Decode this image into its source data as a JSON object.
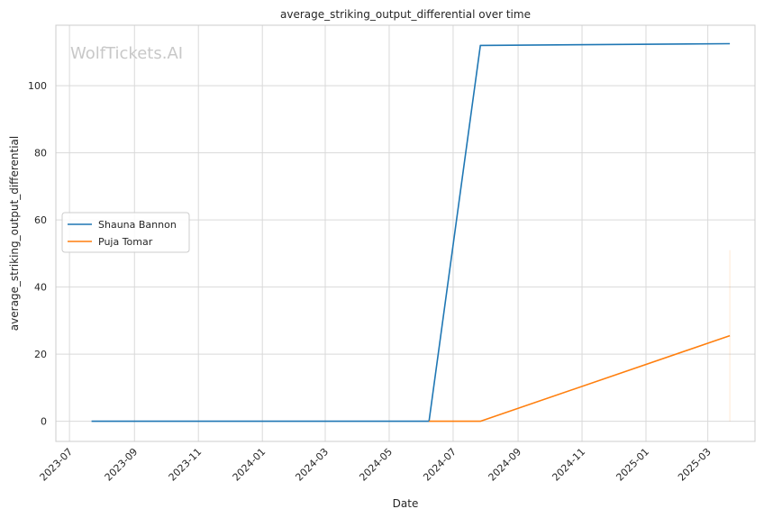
{
  "chart_data": {
    "type": "line",
    "title": "average_striking_output_differential over time",
    "xlabel": "Date",
    "ylabel": "average_striking_output_differential",
    "watermark": "WolfTickets.AI",
    "x_ticks": [
      "2023-07",
      "2023-09",
      "2023-11",
      "2024-01",
      "2024-03",
      "2024-05",
      "2024-07",
      "2024-09",
      "2024-11",
      "2025-01",
      "2025-03"
    ],
    "y_ticks": [
      "0",
      "20",
      "40",
      "60",
      "80",
      "100"
    ],
    "xlim": [
      "2023-06-18",
      "2025-04-15"
    ],
    "ylim": [
      -6,
      118
    ],
    "grid": true,
    "legend_position": "center-left",
    "series": [
      {
        "name": "Shauna Bannon",
        "color": "#1f77b4",
        "x": [
          "2023-07-22",
          "2024-06-08",
          "2024-07-27",
          "2025-03-22"
        ],
        "y": [
          0,
          0,
          112,
          112.5
        ]
      },
      {
        "name": "Puja Tomar",
        "color": "#ff7f0e",
        "x": [
          "2024-06-08",
          "2024-07-27",
          "2025-03-22"
        ],
        "y": [
          0,
          0,
          25.5
        ]
      }
    ]
  }
}
